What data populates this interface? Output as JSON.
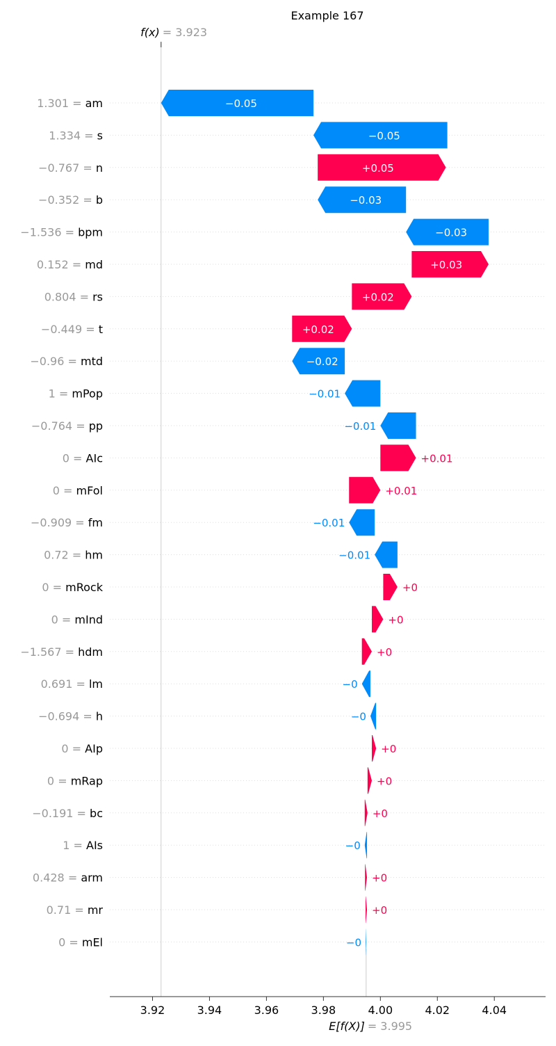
{
  "chart_data": {
    "type": "waterfall",
    "title": "Example 167",
    "fx_label": "f(x)",
    "fx_value_text": "= 3.923",
    "fx_value": 3.923,
    "efx_label": "E[f(X)]",
    "efx_value_text": "= 3.995",
    "base_value": 3.995,
    "xlim": [
      3.905,
      4.058
    ],
    "x_ticks": [
      3.92,
      3.94,
      3.96,
      3.98,
      4.0,
      4.02,
      4.04
    ],
    "x_tick_labels": [
      "3.92",
      "3.94",
      "3.96",
      "3.98",
      "4.00",
      "4.02",
      "4.04"
    ],
    "colors": {
      "positive": "#ff0051",
      "negative": "#008bfb",
      "muted": "#999999",
      "text": "#000000"
    },
    "features": [
      {
        "value": "1.301",
        "name": "am",
        "label": "−0.05",
        "start": 3.9765,
        "end": 3.923
      },
      {
        "value": "1.334",
        "name": "s",
        "label": "−0.05",
        "start": 4.0235,
        "end": 3.9765
      },
      {
        "value": "−0.767",
        "name": "n",
        "label": "+0.05",
        "start": 3.978,
        "end": 4.023
      },
      {
        "value": "−0.352",
        "name": "b",
        "label": "−0.03",
        "start": 4.009,
        "end": 3.978
      },
      {
        "value": "−1.536",
        "name": "bpm",
        "label": "−0.03",
        "start": 4.038,
        "end": 4.009
      },
      {
        "value": "0.152",
        "name": "md",
        "label": "+0.03",
        "start": 4.011,
        "end": 4.038
      },
      {
        "value": "0.804",
        "name": "rs",
        "label": "+0.02",
        "start": 3.99,
        "end": 4.011
      },
      {
        "value": "−0.449",
        "name": "t",
        "label": "+0.02",
        "start": 3.969,
        "end": 3.99
      },
      {
        "value": "−0.96",
        "name": "mtd",
        "label": "−0.02",
        "start": 3.9875,
        "end": 3.969
      },
      {
        "value": "1",
        "name": "mPop",
        "label": "−0.01",
        "start": 4.0,
        "end": 3.9875
      },
      {
        "value": "−0.764",
        "name": "pp",
        "label": "−0.01",
        "start": 4.0125,
        "end": 4.0
      },
      {
        "value": "0",
        "name": "AIc",
        "label": "+0.01",
        "start": 4.0,
        "end": 4.0125
      },
      {
        "value": "0",
        "name": "mFol",
        "label": "+0.01",
        "start": 3.989,
        "end": 4.0
      },
      {
        "value": "−0.909",
        "name": "fm",
        "label": "−0.01",
        "start": 3.998,
        "end": 3.989
      },
      {
        "value": "0.72",
        "name": "hm",
        "label": "−0.01",
        "start": 4.006,
        "end": 3.998
      },
      {
        "value": "0",
        "name": "mRock",
        "label": "+0",
        "start": 4.001,
        "end": 4.006
      },
      {
        "value": "0",
        "name": "mInd",
        "label": "+0",
        "start": 3.997,
        "end": 4.001
      },
      {
        "value": "−1.567",
        "name": "hdm",
        "label": "+0",
        "start": 3.9935,
        "end": 3.997
      },
      {
        "value": "0.691",
        "name": "lm",
        "label": "−0",
        "start": 3.9965,
        "end": 3.9935
      },
      {
        "value": "−0.694",
        "name": "h",
        "label": "−0",
        "start": 3.9985,
        "end": 3.9965
      },
      {
        "value": "0",
        "name": "AIp",
        "label": "+0",
        "start": 3.997,
        "end": 3.9985
      },
      {
        "value": "0",
        "name": "mRap",
        "label": "+0",
        "start": 3.9955,
        "end": 3.997
      },
      {
        "value": "−0.191",
        "name": "bc",
        "label": "+0",
        "start": 3.9945,
        "end": 3.9955
      },
      {
        "value": "1",
        "name": "AIs",
        "label": "−0",
        "start": 3.9953,
        "end": 3.9945
      },
      {
        "value": "0.428",
        "name": "arm",
        "label": "+0",
        "start": 3.9946,
        "end": 3.9953
      },
      {
        "value": "0.71",
        "name": "mr",
        "label": "+0",
        "start": 3.9948,
        "end": 3.9953
      },
      {
        "value": "0",
        "name": "mEl",
        "label": "−0",
        "start": 3.995,
        "end": 3.9948
      }
    ]
  }
}
